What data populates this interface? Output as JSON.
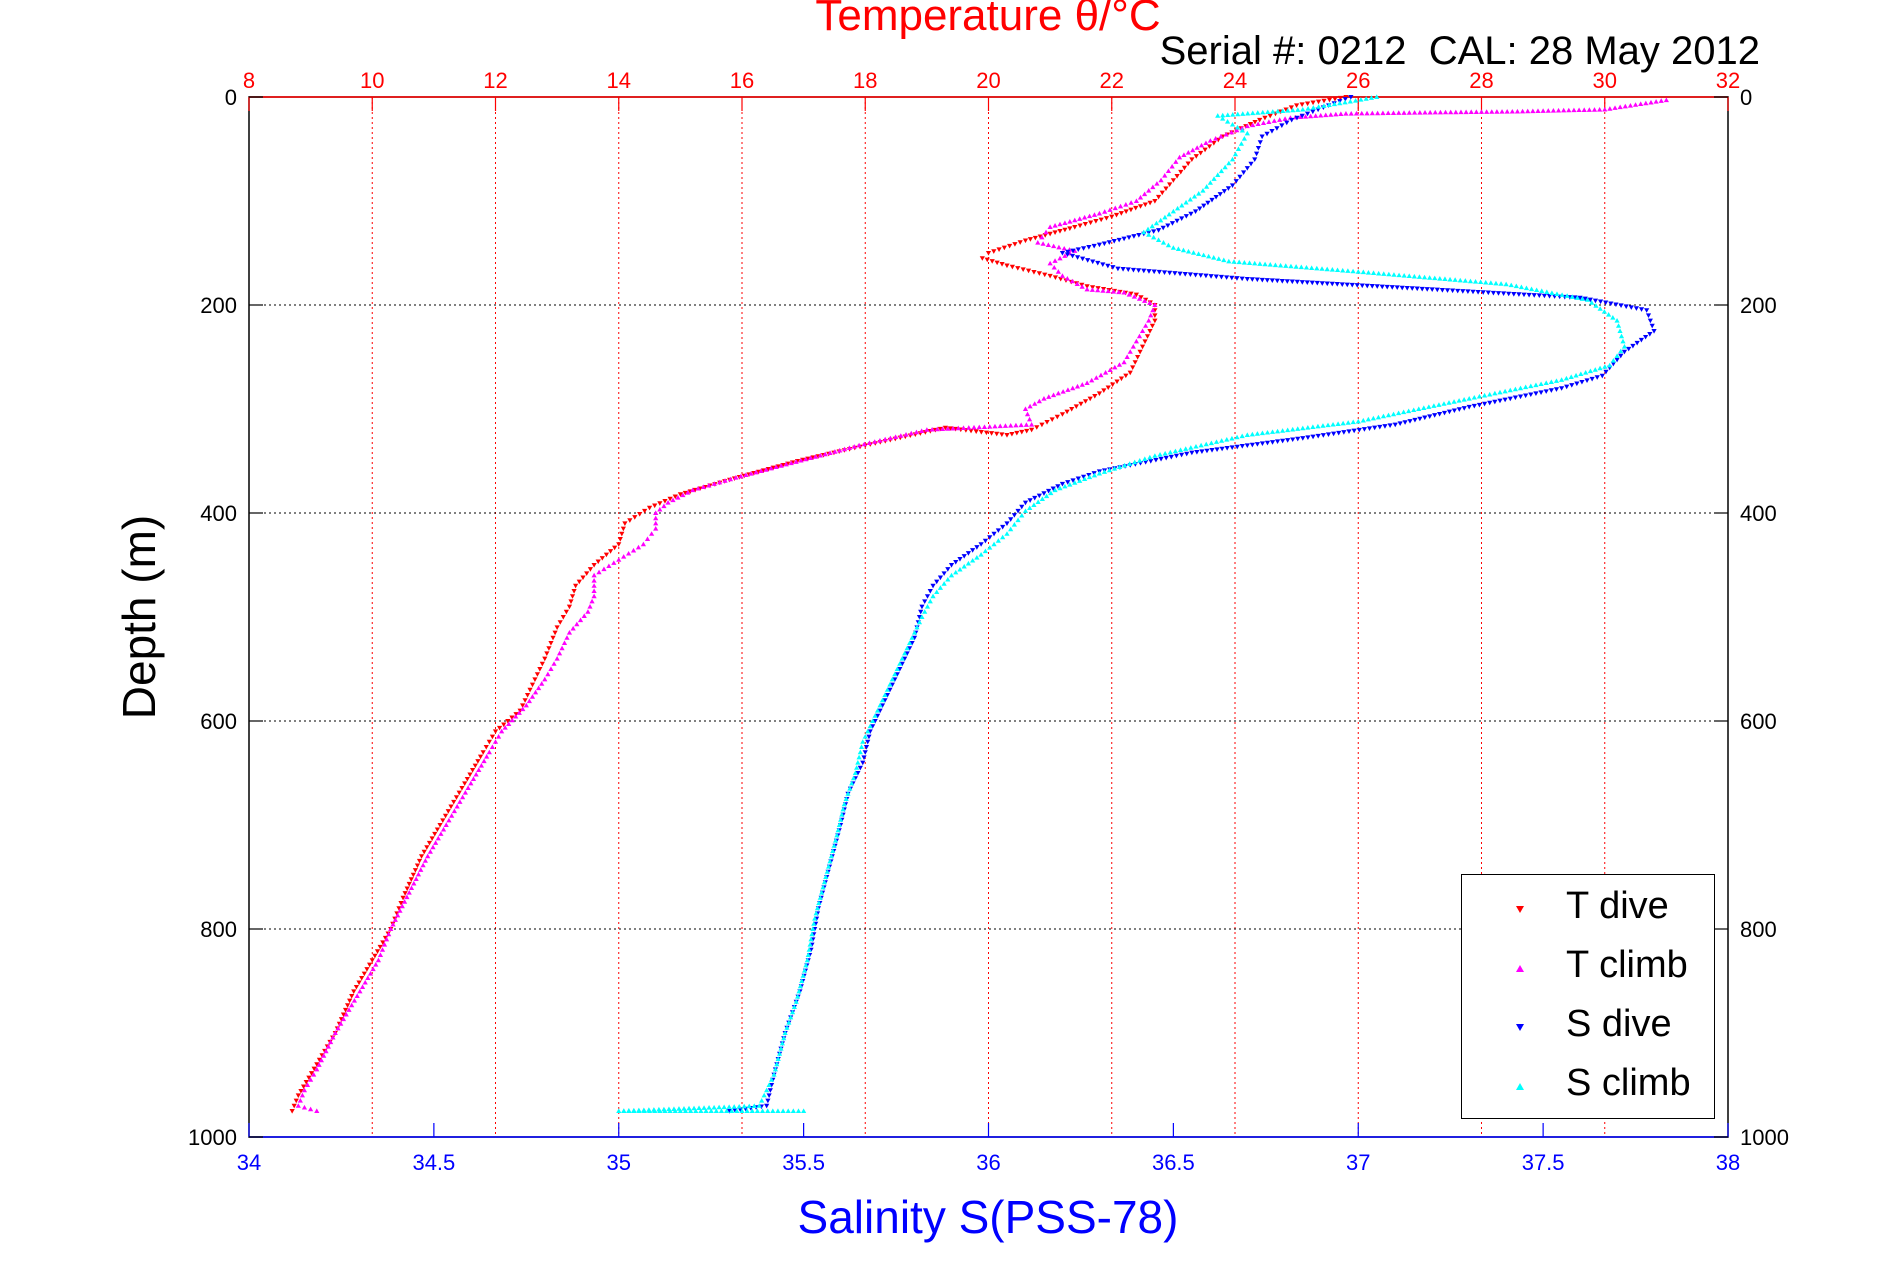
{
  "chart_data": {
    "type": "scatter",
    "title": "Temperature θ/°C",
    "subtitle": "Serial #: 0212  CAL: 28 May 2012",
    "ylabel": "Depth (m)",
    "xlabel_bottom": "Salinity S(PSS-78)",
    "ylim": [
      0,
      1000
    ],
    "y_reversed": true,
    "yticks": [
      0,
      200,
      400,
      600,
      800,
      1000
    ],
    "temperature_axis": {
      "range": [
        8,
        32
      ],
      "ticks": [
        8,
        10,
        12,
        14,
        16,
        18,
        20,
        22,
        24,
        26,
        28,
        30,
        32
      ],
      "color": "#ff0000"
    },
    "salinity_axis": {
      "range": [
        34,
        38
      ],
      "ticks": [
        "34",
        "34.5",
        "35",
        "35.5",
        "36",
        "36.5",
        "37",
        "37.5",
        "38"
      ],
      "color": "#0000ff"
    },
    "grid": true,
    "legend_placement": "bottom-right",
    "series": [
      {
        "name": "T dive",
        "axis": "temperature",
        "color": "#ff0000",
        "marker": "triangle-down",
        "points": [
          [
            25.8,
            0
          ],
          [
            25.0,
            8
          ],
          [
            24.4,
            22
          ],
          [
            23.8,
            38
          ],
          [
            23.3,
            60
          ],
          [
            23.0,
            80
          ],
          [
            22.7,
            100
          ],
          [
            22.0,
            115
          ],
          [
            21.4,
            125
          ],
          [
            20.6,
            138
          ],
          [
            20.0,
            150
          ],
          [
            19.9,
            155
          ],
          [
            20.3,
            162
          ],
          [
            21.0,
            172
          ],
          [
            21.6,
            182
          ],
          [
            22.4,
            190
          ],
          [
            22.7,
            200
          ],
          [
            22.7,
            215
          ],
          [
            22.5,
            240
          ],
          [
            22.3,
            265
          ],
          [
            21.8,
            285
          ],
          [
            21.2,
            305
          ],
          [
            20.7,
            320
          ],
          [
            20.3,
            325
          ],
          [
            19.3,
            318
          ],
          [
            18.0,
            335
          ],
          [
            16.9,
            350
          ],
          [
            15.8,
            368
          ],
          [
            15.0,
            382
          ],
          [
            14.5,
            395
          ],
          [
            14.1,
            410
          ],
          [
            14.0,
            430
          ],
          [
            13.6,
            450
          ],
          [
            13.3,
            470
          ],
          [
            13.2,
            490
          ],
          [
            13.0,
            510
          ],
          [
            12.8,
            540
          ],
          [
            12.6,
            565
          ],
          [
            12.4,
            590
          ],
          [
            12.0,
            610
          ],
          [
            11.8,
            630
          ],
          [
            11.5,
            660
          ],
          [
            11.1,
            700
          ],
          [
            10.8,
            730
          ],
          [
            10.5,
            770
          ],
          [
            10.3,
            800
          ],
          [
            10.0,
            830
          ],
          [
            9.7,
            860
          ],
          [
            9.4,
            900
          ],
          [
            9.1,
            930
          ],
          [
            8.8,
            960
          ],
          [
            8.7,
            975
          ]
        ]
      },
      {
        "name": "T climb",
        "axis": "temperature",
        "color": "#ff00ff",
        "marker": "triangle-up",
        "points": [
          [
            31.0,
            3
          ],
          [
            30.0,
            12
          ],
          [
            28.5,
            14
          ],
          [
            27.0,
            15
          ],
          [
            25.8,
            16
          ],
          [
            24.9,
            20
          ],
          [
            24.2,
            28
          ],
          [
            23.6,
            42
          ],
          [
            23.1,
            58
          ],
          [
            22.8,
            80
          ],
          [
            22.4,
            100
          ],
          [
            21.8,
            112
          ],
          [
            21.0,
            125
          ],
          [
            20.8,
            140
          ],
          [
            21.4,
            148
          ],
          [
            21.0,
            160
          ],
          [
            21.2,
            172
          ],
          [
            21.6,
            185
          ],
          [
            22.2,
            188
          ],
          [
            22.7,
            200
          ],
          [
            22.6,
            215
          ],
          [
            22.4,
            235
          ],
          [
            22.2,
            255
          ],
          [
            21.6,
            275
          ],
          [
            20.9,
            290
          ],
          [
            20.6,
            300
          ],
          [
            20.7,
            315
          ],
          [
            19.0,
            320
          ],
          [
            17.9,
            335
          ],
          [
            16.8,
            352
          ],
          [
            15.9,
            366
          ],
          [
            15.2,
            378
          ],
          [
            14.8,
            390
          ],
          [
            14.6,
            400
          ],
          [
            14.6,
            415
          ],
          [
            14.4,
            430
          ],
          [
            14.0,
            445
          ],
          [
            13.6,
            460
          ],
          [
            13.6,
            480
          ],
          [
            13.5,
            495
          ],
          [
            13.2,
            515
          ],
          [
            13.0,
            540
          ],
          [
            12.8,
            560
          ],
          [
            12.5,
            585
          ],
          [
            12.1,
            610
          ],
          [
            11.9,
            630
          ],
          [
            11.6,
            660
          ],
          [
            11.2,
            700
          ],
          [
            10.9,
            730
          ],
          [
            10.6,
            765
          ],
          [
            10.3,
            800
          ],
          [
            10.1,
            830
          ],
          [
            9.8,
            860
          ],
          [
            9.4,
            900
          ],
          [
            9.1,
            935
          ],
          [
            8.9,
            955
          ],
          [
            8.8,
            970
          ],
          [
            9.1,
            975
          ]
        ]
      },
      {
        "name": "S dive",
        "axis": "salinity",
        "color": "#0000ff",
        "marker": "triangle-down",
        "points": [
          [
            36.98,
            0
          ],
          [
            36.92,
            8
          ],
          [
            36.82,
            22
          ],
          [
            36.74,
            38
          ],
          [
            36.72,
            60
          ],
          [
            36.66,
            85
          ],
          [
            36.56,
            110
          ],
          [
            36.46,
            128
          ],
          [
            36.3,
            142
          ],
          [
            36.2,
            150
          ],
          [
            36.35,
            165
          ],
          [
            36.7,
            175
          ],
          [
            37.2,
            185
          ],
          [
            37.6,
            193
          ],
          [
            37.78,
            205
          ],
          [
            37.8,
            225
          ],
          [
            37.72,
            245
          ],
          [
            37.66,
            268
          ],
          [
            37.55,
            280
          ],
          [
            37.3,
            298
          ],
          [
            37.1,
            315
          ],
          [
            36.85,
            328
          ],
          [
            36.55,
            342
          ],
          [
            36.3,
            360
          ],
          [
            36.2,
            372
          ],
          [
            36.1,
            390
          ],
          [
            36.05,
            410
          ],
          [
            35.98,
            430
          ],
          [
            35.9,
            450
          ],
          [
            35.85,
            470
          ],
          [
            35.82,
            490
          ],
          [
            35.8,
            520
          ],
          [
            35.76,
            550
          ],
          [
            35.72,
            580
          ],
          [
            35.68,
            610
          ],
          [
            35.66,
            640
          ],
          [
            35.62,
            670
          ],
          [
            35.6,
            700
          ],
          [
            35.57,
            740
          ],
          [
            35.54,
            780
          ],
          [
            35.52,
            820
          ],
          [
            35.49,
            860
          ],
          [
            35.45,
            900
          ],
          [
            35.42,
            940
          ],
          [
            35.4,
            970
          ],
          [
            35.3,
            975
          ]
        ]
      },
      {
        "name": "S climb",
        "axis": "salinity",
        "color": "#00ffff",
        "marker": "triangle-up",
        "points": [
          [
            37.05,
            0
          ],
          [
            36.85,
            12
          ],
          [
            36.62,
            18
          ],
          [
            36.7,
            35
          ],
          [
            36.66,
            60
          ],
          [
            36.58,
            90
          ],
          [
            36.5,
            110
          ],
          [
            36.42,
            130
          ],
          [
            36.5,
            145
          ],
          [
            36.65,
            158
          ],
          [
            37.0,
            168
          ],
          [
            37.4,
            180
          ],
          [
            37.62,
            195
          ],
          [
            37.7,
            215
          ],
          [
            37.72,
            240
          ],
          [
            37.68,
            258
          ],
          [
            37.55,
            272
          ],
          [
            37.3,
            290
          ],
          [
            37.0,
            312
          ],
          [
            36.7,
            325
          ],
          [
            36.45,
            345
          ],
          [
            36.3,
            362
          ],
          [
            36.18,
            378
          ],
          [
            36.1,
            398
          ],
          [
            36.05,
            420
          ],
          [
            35.98,
            440
          ],
          [
            35.9,
            460
          ],
          [
            35.85,
            480
          ],
          [
            35.82,
            500
          ],
          [
            35.78,
            530
          ],
          [
            35.74,
            560
          ],
          [
            35.7,
            590
          ],
          [
            35.66,
            620
          ],
          [
            35.64,
            650
          ],
          [
            35.61,
            680
          ],
          [
            35.59,
            710
          ],
          [
            35.56,
            750
          ],
          [
            35.53,
            790
          ],
          [
            35.51,
            830
          ],
          [
            35.48,
            870
          ],
          [
            35.45,
            900
          ],
          [
            35.42,
            940
          ],
          [
            35.38,
            970
          ],
          [
            35.0,
            975
          ],
          [
            35.5,
            975
          ]
        ]
      }
    ]
  }
}
